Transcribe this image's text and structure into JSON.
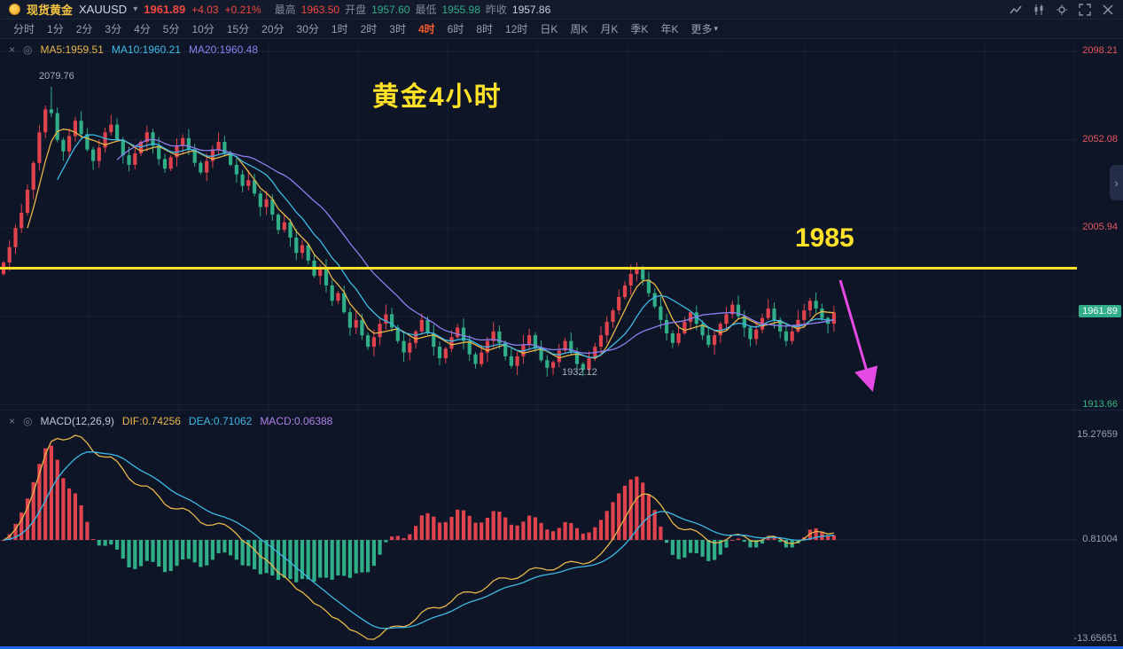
{
  "header": {
    "instrument_name": "现货黄金",
    "symbol": "XAUUSD",
    "price": "1961.89",
    "change": "+4.03",
    "change_pct": "+0.21%",
    "stats": [
      {
        "label": "最高",
        "value": "1963.50",
        "color": "up"
      },
      {
        "label": "开盘",
        "value": "1957.60",
        "color": "down"
      },
      {
        "label": "最低",
        "value": "1955.98",
        "color": "down"
      },
      {
        "label": "昨收",
        "value": "1957.86",
        "color": "neutral"
      }
    ],
    "window_icons": [
      "line-chart-icon",
      "candles-icon",
      "settings-icon",
      "fullscreen-icon",
      "close-icon"
    ]
  },
  "timeframes": {
    "items": [
      "分时",
      "1分",
      "2分",
      "3分",
      "4分",
      "5分",
      "10分",
      "15分",
      "20分",
      "30分",
      "1时",
      "2时",
      "3时",
      "4时",
      "6时",
      "8时",
      "12时",
      "日K",
      "周K",
      "月K",
      "季K",
      "年K"
    ],
    "selected": "4时",
    "more_label": "更多"
  },
  "main_chart": {
    "legend": {
      "ma5": "MA5:1959.51",
      "ma10": "MA10:1960.21",
      "ma20": "MA20:1960.48"
    },
    "axis_labels": [
      "2098.21",
      "2052.08",
      "2005.94",
      "1913.66"
    ],
    "current_price": "1961.89",
    "annotations": {
      "title": "黄金4小时",
      "hline_label": "1985",
      "high_label": "2079.76",
      "low_label": "1932.12"
    },
    "expander_glyph": "›"
  },
  "macd": {
    "legend_name": "MACD(12,26,9)",
    "dif": "DIF:0.74256",
    "dea": "DEA:0.71062",
    "macd": "MACD:0.06388",
    "axis_labels": [
      "15.27659",
      "0.81004",
      "-13.65651"
    ]
  },
  "chart_data": {
    "type": "candlestick+macd",
    "symbol": "XAUUSD",
    "timeframe": "4H",
    "hline": 1985,
    "price_axis": {
      "max": 2098.21,
      "gridlines": [
        2098.21,
        2052.08,
        2005.94,
        1959.8,
        1913.66
      ],
      "min": 1913.66
    },
    "macd_axis": {
      "max": 15.27659,
      "mid": 0.81004,
      "min": -13.65651
    },
    "key_points": {
      "spike_high": 2079.76,
      "swing_low": 1932.12,
      "last": 1961.89,
      "prev_close": 1957.86
    },
    "closes": [
      1988,
      1996,
      2006,
      2014,
      2026,
      2040,
      2056,
      2068,
      2066,
      2052,
      2046,
      2054,
      2062,
      2055,
      2047,
      2041,
      2048,
      2056,
      2060,
      2052,
      2044,
      2039,
      2045,
      2051,
      2056,
      2049,
      2042,
      2037,
      2043,
      2049,
      2053,
      2047,
      2040,
      2035,
      2041,
      2047,
      2051,
      2045,
      2039,
      2034,
      2028,
      2031,
      2024,
      2017,
      2021,
      2013,
      2005,
      2009,
      2001,
      1993,
      1997,
      1989,
      1981,
      1985,
      1976,
      1968,
      1972,
      1962,
      1954,
      1958,
      1950,
      1944,
      1949,
      1956,
      1961,
      1954,
      1947,
      1941,
      1946,
      1952,
      1958,
      1951,
      1944,
      1938,
      1943,
      1949,
      1954,
      1947,
      1940,
      1935,
      1941,
      1947,
      1952,
      1946,
      1939,
      1934,
      1939,
      1945,
      1950,
      1943,
      1937,
      1933,
      1936,
      1942,
      1947,
      1941,
      1935,
      1932,
      1938,
      1944,
      1950,
      1957,
      1963,
      1970,
      1976,
      1982,
      1985,
      1979,
      1972,
      1965,
      1958,
      1951,
      1946,
      1951,
      1957,
      1962,
      1956,
      1950,
      1945,
      1950,
      1956,
      1961,
      1966,
      1960,
      1954,
      1948,
      1953,
      1959,
      1964,
      1958,
      1952,
      1947,
      1952,
      1958,
      1963,
      1968,
      1964,
      1959,
      1956,
      1961.89
    ],
    "colors": {
      "up": "#e0424e",
      "down": "#2fae87",
      "ma5": "#e9b64a",
      "ma10": "#3fb9e6",
      "ma20": "#8f7ff0",
      "hline": "#ffe227",
      "arrow": "#e54ae5",
      "accent_selected": "#fa5a2c",
      "badge": "#2fae87"
    }
  }
}
